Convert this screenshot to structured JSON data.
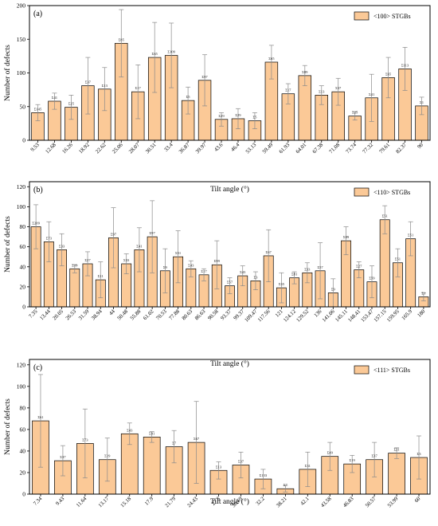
{
  "chart_data": [
    {
      "type": "bar",
      "panel_label": "(a)",
      "legend": "<100> STGBs",
      "xlabel": "Tilt angle (°)",
      "ylabel": "Number of defects",
      "ylim": [
        0,
        200
      ],
      "yticks": [
        0,
        50,
        100,
        150,
        200
      ],
      "categories": [
        "9.53",
        "12.68",
        "16.26",
        "18.92",
        "22.62",
        "25.06",
        "28.07",
        "30.51",
        "33.4",
        "36.87",
        "39.97",
        "43.6",
        "46.4",
        "53.13",
        "59.49",
        "61.93",
        "64.01",
        "67.38",
        "71.08",
        "73.74",
        "77.32",
        "79.61",
        "82.37",
        "90"
      ],
      "values": [
        41,
        58,
        49,
        81,
        76,
        144,
        72,
        123,
        126,
        59,
        89,
        31,
        32,
        29,
        116,
        69,
        96,
        67,
        72,
        36,
        63,
        93,
        106,
        51
      ],
      "errors": [
        12,
        12,
        18,
        42,
        32,
        50,
        40,
        52,
        48,
        20,
        38,
        10,
        15,
        12,
        25,
        15,
        15,
        14,
        20,
        6,
        35,
        30,
        32,
        13
      ],
      "bar_labels": [
        "Σ145",
        "Σ41",
        "Σ25",
        "Σ37",
        "Σ13",
        "Σ85",
        "Σ17",
        "Σ65",
        "Σ109",
        "Σ5",
        "Σ97",
        "Σ29",
        "Σ29",
        "Σ5",
        "Σ65",
        "Σ17",
        "Σ89",
        "Σ13",
        "Σ37",
        "Σ25",
        "Σ41",
        "Σ65",
        "Σ113",
        "Σ1"
      ]
    },
    {
      "type": "bar",
      "panel_label": "(b)",
      "legend": "<110> STGBs",
      "xlabel": "Tilt angle (°)",
      "ylabel": "Number of defects",
      "ylim": [
        0,
        125
      ],
      "yticks": [
        0,
        20,
        40,
        60,
        80,
        100,
        120
      ],
      "categories": [
        "7.35",
        "13.44",
        "20.05",
        "26.53",
        "31.59",
        "38.94",
        "44",
        "50.48",
        "55.88",
        "61.02",
        "70.53",
        "77.88",
        "80.63",
        "86.63",
        "90.58",
        "93.37",
        "99.37",
        "109.47",
        "117.56",
        "121",
        "124.12",
        "129.52",
        "136",
        "141.06",
        "145.11",
        "148.41",
        "153.47",
        "157.15",
        "159.95",
        "165.9",
        "180"
      ],
      "values": [
        80,
        65,
        57,
        38,
        43,
        27,
        69,
        43,
        57,
        70,
        36,
        50,
        38,
        32,
        42,
        21,
        31,
        26,
        51,
        19,
        29,
        34,
        36,
        14,
        66,
        37,
        25,
        87,
        44,
        68,
        10
      ],
      "errors": [
        22,
        20,
        16,
        4,
        12,
        18,
        30,
        10,
        22,
        36,
        22,
        26,
        8,
        6,
        24,
        8,
        10,
        9,
        26,
        15,
        6,
        10,
        28,
        14,
        14,
        8,
        16,
        14,
        14,
        17,
        4
      ],
      "bar_labels": [
        "Σ209",
        "Σ73",
        "Σ33",
        "Σ19",
        "Σ27",
        "Σ11",
        "Σ97",
        "Σ33",
        "Σ41",
        "Σ97",
        "Σ9",
        "Σ51",
        "Σ43",
        "Σ17",
        "Σ99",
        "Σ57",
        "Σ43",
        "Σ3",
        "Σ67",
        "Σ35",
        "Σ81",
        "Σ33",
        "Σ57",
        "Σ9",
        "Σ89",
        "Σ27",
        "Σ59",
        "Σ51",
        "Σ51",
        "Σ51",
        "Σ1"
      ]
    },
    {
      "type": "bar",
      "panel_label": "(c)",
      "legend": "<111> STGBs",
      "xlabel": "Tilt angle (°)",
      "ylabel": "Number of defects",
      "ylim": [
        0,
        125
      ],
      "yticks": [
        0,
        20,
        40,
        60,
        80,
        100,
        120
      ],
      "categories": [
        "7.34",
        "9.43",
        "11.64",
        "13.17",
        "15.18",
        "17.9",
        "21.79",
        "24.43",
        "27.8",
        "30.59",
        "32.2",
        "38.21",
        "42.1",
        "43.58",
        "46.83",
        "50.57",
        "53.99",
        "60"
      ],
      "values": [
        68,
        31,
        47,
        32,
        56,
        53,
        44,
        48,
        22,
        27,
        14,
        5,
        23,
        35,
        28,
        32,
        38,
        34
      ],
      "errors": [
        43,
        14,
        32,
        20,
        10,
        5,
        15,
        38,
        8,
        12,
        9,
        3,
        16,
        13,
        8,
        16,
        5,
        20
      ],
      "bar_labels": [
        "Σ61",
        "Σ37",
        "Σ73",
        "Σ19",
        "Σ43",
        "Σ91",
        "Σ7",
        "Σ67",
        "Σ13",
        "Σ37",
        "Σ133",
        "Σ7",
        "Σ31",
        "Σ49",
        "Σ19",
        "Σ37",
        "Σ21",
        "Σ3"
      ]
    }
  ]
}
